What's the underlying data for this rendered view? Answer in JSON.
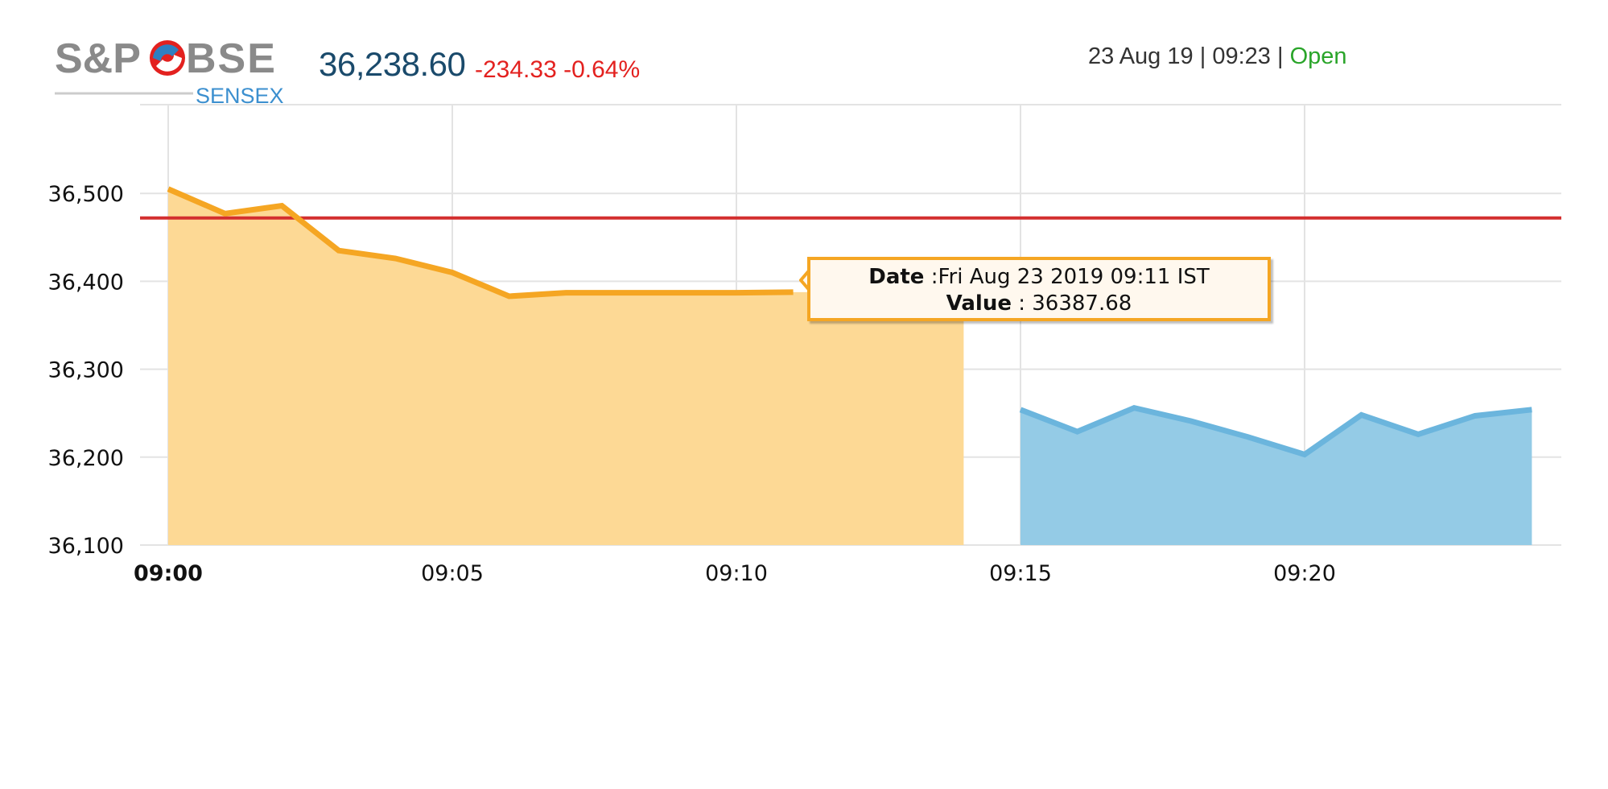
{
  "header": {
    "index_value": "36,238.60",
    "change_points": "-234.33",
    "change_percent": "-0.64%",
    "date": "23 Aug 19",
    "separator": "|",
    "time": "09:23",
    "status": "Open"
  },
  "logo": {
    "text_main": "S&P BSE",
    "text_sub": "SENSEX"
  },
  "tooltip": {
    "date_label": "Date",
    "date_value": ":Fri Aug 23 2019 09:11 IST",
    "value_label": "Value",
    "value_value": ": 36387.68"
  },
  "chart_data": {
    "type": "area",
    "x_ticks": [
      "09:00",
      "09:05",
      "09:10",
      "09:15",
      "09:20"
    ],
    "y_ticks": [
      36100,
      36200,
      36300,
      36400,
      36500
    ],
    "y_tick_labels": [
      "36,100",
      "36,200",
      "36,300",
      "36,400",
      "36,500"
    ],
    "ylim": [
      36100,
      36600
    ],
    "xlim_minutes": [
      -0.5,
      24.5
    ],
    "reference_line": {
      "value": 36472,
      "color": "#d32f2f"
    },
    "series": [
      {
        "color": "#f5a623",
        "fill": "#fdd995",
        "x": [
          "09:00",
          "09:01",
          "09:02",
          "09:03",
          "09:04",
          "09:05",
          "09:06",
          "09:07",
          "09:08",
          "09:09",
          "09:10",
          "09:11"
        ],
        "values": [
          36505,
          36477,
          36486,
          36435,
          36426,
          36410,
          36383,
          36387,
          36387,
          36387,
          36387,
          36387.68
        ],
        "fill_until": "09:14"
      },
      {
        "color": "#6bb5dd",
        "fill": "#94cbe6",
        "x": [
          "09:15",
          "09:16",
          "09:17",
          "09:18",
          "09:19",
          "09:20",
          "09:21",
          "09:22",
          "09:23",
          "09:24"
        ],
        "values": [
          36254,
          36229,
          36256,
          36241,
          36223,
          36203,
          36248,
          36226,
          36247,
          36254
        ]
      }
    ],
    "grid": true,
    "tooltip_at": "09:11"
  }
}
